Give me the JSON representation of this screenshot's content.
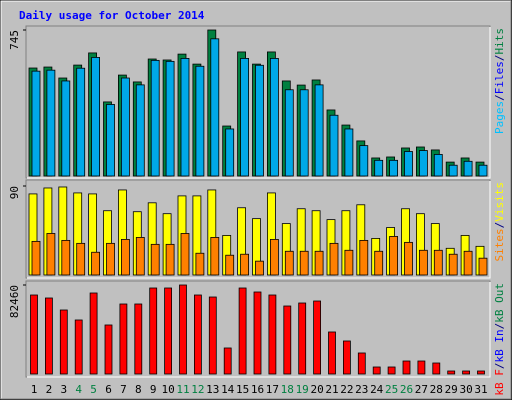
{
  "chart_data": [
    {
      "type": "bar",
      "title": "Daily usage for October 2014",
      "ylim": [
        0,
        745
      ],
      "yticks": [
        745
      ],
      "series": [
        {
          "color": "#008040",
          "values": [
            551,
            556,
            500,
            566,
            628,
            378,
            515,
            480,
            597,
            592,
            622,
            571,
            745,
            255,
            633,
            571,
            633,
            485,
            464,
            490,
            337,
            260,
            179,
            92,
            97,
            143,
            148,
            133,
            71,
            92,
            71
          ]
        },
        {
          "color": "#00a8e8",
          "values": [
            535,
            540,
            485,
            550,
            605,
            365,
            500,
            465,
            590,
            585,
            600,
            560,
            700,
            240,
            600,
            565,
            600,
            440,
            440,
            465,
            310,
            240,
            155,
            80,
            80,
            125,
            130,
            110,
            55,
            75,
            55
          ]
        }
      ],
      "side_label": [
        {
          "text": "Pages",
          "color": "#00c0ff"
        },
        {
          "text": "/",
          "color": "#000080"
        },
        {
          "text": "Files",
          "color": "#0000ff"
        },
        {
          "text": "/",
          "color": "#000080"
        },
        {
          "text": "Hits",
          "color": "#008040"
        }
      ]
    },
    {
      "type": "bar",
      "ylim": [
        0,
        90
      ],
      "yticks": [
        90
      ],
      "series": [
        {
          "color": "#ffff00",
          "values": [
            82,
            88,
            89,
            83,
            82,
            65,
            86,
            64,
            73,
            62,
            80,
            80,
            86,
            40,
            68,
            57,
            83,
            52,
            67,
            65,
            56,
            65,
            71,
            37,
            48,
            67,
            62,
            52,
            27,
            40,
            29
          ]
        },
        {
          "color": "#ff8000",
          "values": [
            34,
            42,
            35,
            32,
            23,
            32,
            36,
            38,
            31,
            31,
            42,
            22,
            38,
            20,
            21,
            14,
            36,
            24,
            24,
            24,
            32,
            25,
            35,
            24,
            39,
            33,
            25,
            25,
            21,
            24,
            17
          ]
        }
      ],
      "side_label": [
        {
          "text": "Sites",
          "color": "#ff8000"
        },
        {
          "text": "/",
          "color": "#000080"
        },
        {
          "text": "Visits",
          "color": "#ffff00"
        }
      ]
    },
    {
      "type": "bar",
      "ylim": [
        0,
        82460
      ],
      "yticks": [
        82460
      ],
      "series": [
        {
          "color": "#ff0000",
          "values": [
            73195,
            70415,
            59300,
            50040,
            75050,
            45410,
            64860,
            64860,
            79680,
            79680,
            82460,
            73195,
            71340,
            24100,
            79680,
            75980,
            73195,
            63000,
            65780,
            67630,
            38930,
            30590,
            19470,
            6490,
            6490,
            12040,
            12040,
            10190,
            2780,
            2780,
            2780
          ]
        }
      ],
      "side_label": [
        {
          "text": "kB F",
          "color": "#ff0000"
        },
        {
          "text": "/",
          "color": "#000080"
        },
        {
          "text": "kB In",
          "color": "#0000ff"
        },
        {
          "text": "/",
          "color": "#000080"
        },
        {
          "text": "kB Out",
          "color": "#008040"
        }
      ],
      "categories": [
        "1",
        "2",
        "3",
        "4",
        "5",
        "6",
        "7",
        "8",
        "9",
        "10",
        "11",
        "12",
        "13",
        "14",
        "15",
        "16",
        "17",
        "18",
        "19",
        "20",
        "21",
        "22",
        "23",
        "24",
        "25",
        "26",
        "27",
        "28",
        "29",
        "30",
        "31"
      ],
      "label_color": "#000000",
      "highlight_color": "#008040",
      "highlight_indices": [
        3,
        4,
        10,
        11,
        17,
        18,
        24,
        25
      ]
    }
  ]
}
